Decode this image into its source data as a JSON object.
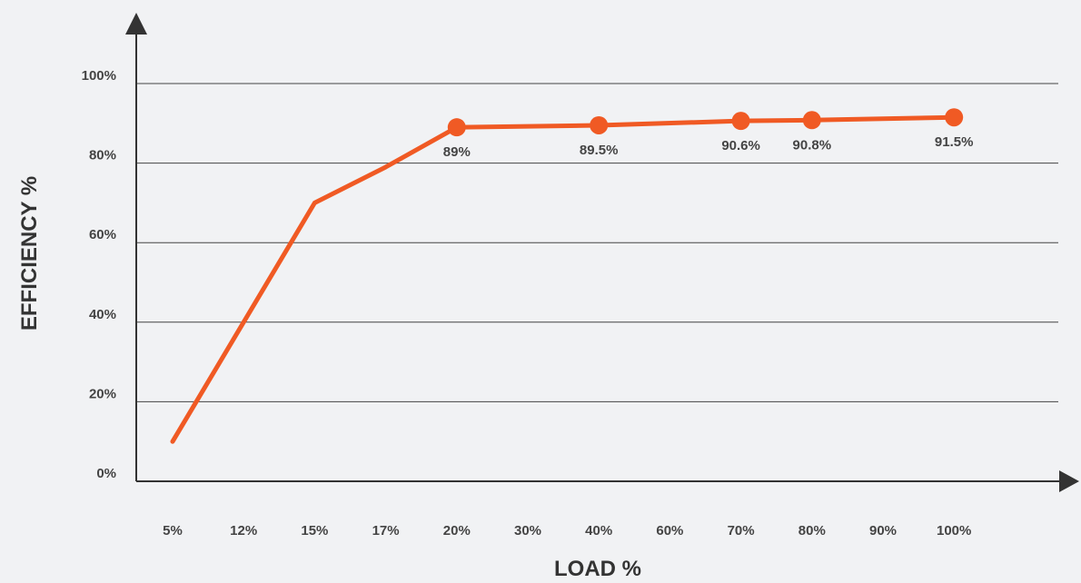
{
  "chart_data": {
    "type": "line",
    "xlabel": "LOAD %",
    "ylabel": "EFFICIENCY %",
    "categories": [
      "5%",
      "12%",
      "15%",
      "17%",
      "20%",
      "30%",
      "40%",
      "60%",
      "70%",
      "80%",
      "90%",
      "100%"
    ],
    "ylim": [
      0,
      100
    ],
    "y_ticks": [
      "0%",
      "20%",
      "40%",
      "60%",
      "80%",
      "100%"
    ],
    "y_tick_values": [
      0,
      20,
      40,
      60,
      80,
      100
    ],
    "grid": true,
    "series": [
      {
        "color": "#f05a24",
        "points": [
          {
            "x": "5%",
            "y": 10
          },
          {
            "x": "15%",
            "y": 70
          },
          {
            "x": "17%",
            "y": 79
          },
          {
            "x": "20%",
            "y": 89,
            "label": "89%",
            "marker": true
          },
          {
            "x": "40%",
            "y": 89.5,
            "label": "89.5%",
            "marker": true
          },
          {
            "x": "70%",
            "y": 90.6,
            "label": "90.6%",
            "marker": true
          },
          {
            "x": "80%",
            "y": 90.8,
            "label": "90.8%",
            "marker": true
          },
          {
            "x": "100%",
            "y": 91.5,
            "label": "91.5%",
            "marker": true
          }
        ]
      }
    ]
  },
  "colors": {
    "background": "#f1f2f4",
    "axis": "#333333",
    "grid": "#444444",
    "line": "#f05a24",
    "text": "#444444"
  }
}
